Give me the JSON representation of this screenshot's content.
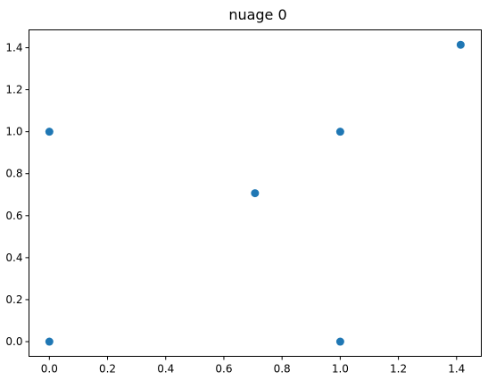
{
  "chart_data": {
    "type": "scatter",
    "title": "nuage 0",
    "xlabel": "",
    "ylabel": "",
    "xlim": [
      -0.07,
      1.485
    ],
    "ylim": [
      -0.07,
      1.485
    ],
    "x_ticks": [
      0.0,
      0.2,
      0.4,
      0.6,
      0.8,
      1.0,
      1.2,
      1.4
    ],
    "x_tick_labels": [
      "0.0",
      "0.2",
      "0.4",
      "0.6",
      "0.8",
      "1.0",
      "1.2",
      "1.4"
    ],
    "y_ticks": [
      0.0,
      0.2,
      0.4,
      0.6,
      0.8,
      1.0,
      1.2,
      1.4
    ],
    "y_tick_labels": [
      "0.0",
      "0.2",
      "0.4",
      "0.6",
      "0.8",
      "1.0",
      "1.2",
      "1.4"
    ],
    "grid": false,
    "series": [
      {
        "color": "#1f77b4",
        "points": [
          {
            "x": 0.0,
            "y": 1.0
          },
          {
            "x": 0.0,
            "y": 0.0
          },
          {
            "x": 0.707,
            "y": 0.707
          },
          {
            "x": 1.0,
            "y": 1.0
          },
          {
            "x": 1.0,
            "y": 0.0
          },
          {
            "x": 1.414,
            "y": 1.414
          }
        ]
      }
    ]
  }
}
